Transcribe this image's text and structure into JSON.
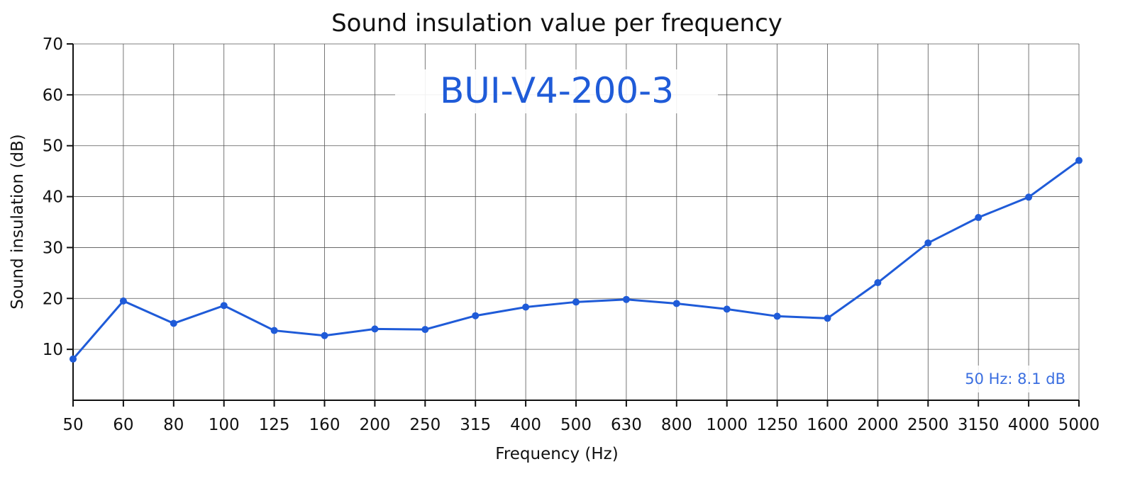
{
  "chart_data": {
    "type": "line",
    "title": "Sound insulation value per frequency",
    "xlabel": "Frequency (Hz)",
    "ylabel": "Sound insulation (dB)",
    "ylim": [
      0,
      70
    ],
    "yticks": [
      10,
      20,
      30,
      40,
      50,
      60,
      70
    ],
    "grid": true,
    "categories": [
      "50",
      "60",
      "80",
      "100",
      "125",
      "160",
      "200",
      "250",
      "315",
      "400",
      "500",
      "630",
      "800",
      "1000",
      "1250",
      "1600",
      "2000",
      "2500",
      "3150",
      "4000",
      "5000"
    ],
    "series": [
      {
        "name": "BUI-V4-200-3",
        "color": "#1f5bd8",
        "values": [
          8.1,
          19.5,
          15.1,
          18.6,
          13.7,
          12.7,
          14.0,
          13.9,
          16.6,
          18.3,
          19.3,
          19.8,
          19.0,
          17.9,
          16.5,
          16.1,
          23.1,
          30.9,
          35.9,
          39.9,
          47.1
        ]
      }
    ],
    "series_label": "BUI-V4-200-3",
    "tooltip": "50 Hz: 8.1 dB"
  }
}
